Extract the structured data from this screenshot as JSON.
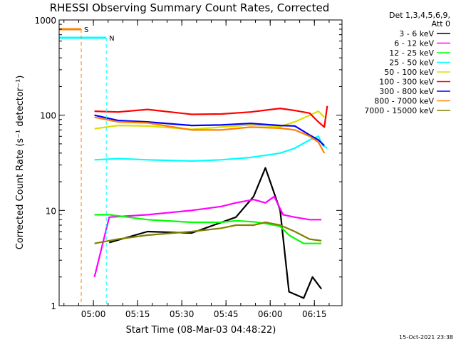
{
  "chart_data": {
    "type": "line",
    "title": "RHESSI Observing Summary Count Rates, Corrected",
    "xlabel": "Start Time (08-Mar-03 04:48:22)",
    "ylabel": "Corrected Count Rate (s⁻¹ detector⁻¹)",
    "yscale": "log",
    "ylim": [
      1,
      1000
    ],
    "xlim_minutes_after_0448_22": [
      0,
      96
    ],
    "y_tick_labels": [
      "1",
      "10",
      "100",
      "1000"
    ],
    "x_tick_labels": [
      "05:00",
      "05:15",
      "05:30",
      "05:45",
      "06:00",
      "06:15"
    ],
    "x_tick_minutes": [
      11.63,
      26.63,
      41.63,
      56.63,
      71.63,
      86.63
    ],
    "legend": {
      "header": [
        "Det 1,3,4,5,6,9,",
        "Att 0"
      ],
      "placement": "right"
    },
    "series": [
      {
        "name": "3 - 6 keV",
        "color": "#000000",
        "x": [
          12,
          17,
          30,
          45,
          60,
          66,
          70,
          75,
          78,
          83,
          86,
          89
        ],
        "y": [
          null,
          4.6,
          6.0,
          5.8,
          8.5,
          14,
          28,
          10,
          1.4,
          1.2,
          2,
          1.5
        ]
      },
      {
        "name": "6 - 12 keV",
        "color": "#ff00ff",
        "x": [
          12,
          17,
          30,
          45,
          55,
          60,
          66,
          70,
          73,
          76,
          80,
          85,
          89
        ],
        "y": [
          2,
          8.5,
          9.0,
          10,
          11,
          12,
          13,
          12,
          14,
          9,
          8.5,
          8,
          8
        ]
      },
      {
        "name": "12 - 25 keV",
        "color": "#00ff00",
        "x": [
          12,
          17,
          30,
          45,
          55,
          60,
          66,
          70,
          75,
          78,
          83,
          89
        ],
        "y": [
          9,
          9,
          8,
          7.5,
          7.5,
          7.8,
          7.6,
          7.3,
          6.8,
          5.5,
          4.5,
          4.5
        ]
      },
      {
        "name": "25 - 50 keV",
        "color": "#00ffff",
        "x": [
          12,
          20,
          30,
          45,
          55,
          65,
          75,
          80,
          85,
          88,
          89.5,
          91
        ],
        "y": [
          34,
          35,
          34,
          33,
          34,
          36,
          40,
          45,
          55,
          60,
          48,
          45
        ]
      },
      {
        "name": "50 - 100 keV",
        "color": "#dddd00",
        "x": [
          12,
          20,
          30,
          45,
          55,
          65,
          75,
          80,
          85,
          88,
          90
        ],
        "y": [
          72,
          78,
          77,
          71,
          75,
          79,
          76,
          85,
          100,
          110,
          95
        ]
      },
      {
        "name": "100 - 300 keV",
        "color": "#ff0000",
        "x": [
          12,
          20,
          30,
          45,
          55,
          65,
          75,
          80,
          85,
          88,
          90,
          91
        ],
        "y": [
          110,
          108,
          115,
          102,
          103,
          108,
          118,
          112,
          105,
          85,
          75,
          125
        ]
      },
      {
        "name": "300 - 800 keV",
        "color": "#0000ff",
        "x": [
          12,
          20,
          30,
          45,
          55,
          65,
          75,
          80,
          85,
          88,
          90
        ],
        "y": [
          100,
          88,
          85,
          78,
          79,
          82,
          78,
          77,
          62,
          55,
          48
        ]
      },
      {
        "name": "800 - 7000 keV",
        "color": "#ff8000",
        "x": [
          12,
          20,
          30,
          45,
          55,
          65,
          75,
          80,
          85,
          88,
          90
        ],
        "y": [
          95,
          85,
          83,
          70,
          70,
          75,
          73,
          70,
          60,
          52,
          40
        ]
      },
      {
        "name": "7000 - 15000 keV",
        "color": "#808000",
        "x": [
          12,
          20,
          30,
          45,
          55,
          60,
          66,
          70,
          75,
          80,
          85,
          89
        ],
        "y": [
          4.5,
          5.0,
          5.5,
          6.0,
          6.5,
          7.0,
          7.0,
          7.5,
          7.0,
          6.0,
          5.0,
          4.8
        ]
      }
    ],
    "flags": [
      {
        "name": "S",
        "color": "#ff8000",
        "style": "dashed",
        "x": 7.5,
        "level": 800
      },
      {
        "name": "N",
        "color": "#00ffff",
        "style": "dashed",
        "x": 16,
        "level": 650
      }
    ],
    "footer": "15-Oct-2021 23:38"
  }
}
